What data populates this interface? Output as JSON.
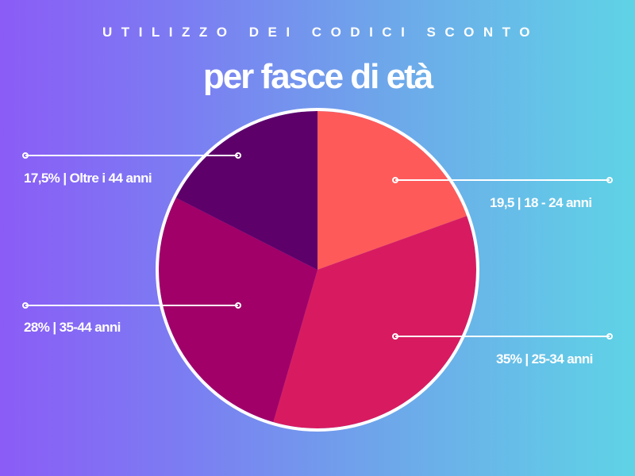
{
  "header": {
    "eyebrow": "UTILIZZO DEI CODICI SCONTO",
    "title": "per fasce di età"
  },
  "labels": {
    "top_left": "17,5% | Oltre i 44 anni",
    "top_right": "19,5  |  18 - 24 anni",
    "bottom_left": "28%  | 35-44 anni",
    "bottom_right": "35% | 25-34 anni"
  },
  "colors": {
    "background_start": "#8b5cf6",
    "background_end": "#5fd3e6",
    "slice_18_24": "#ff5a5a",
    "slice_25_34": "#d81b60",
    "slice_35_44": "#a10068",
    "slice_over_44": "#5e006a",
    "outline": "#ffffff"
  },
  "chart_data": {
    "type": "pie",
    "title": "UTILIZZO DEI CODICI SCONTO",
    "subtitle": "per fasce di età",
    "categories": [
      "18 - 24 anni",
      "25-34 anni",
      "35-44 anni",
      "Oltre i 44 anni"
    ],
    "values": [
      19.5,
      35,
      28,
      17.5
    ],
    "value_labels": [
      "19,5",
      "35%",
      "28%",
      "17,5%"
    ],
    "start_angle": "12 o'clock",
    "direction": "clockwise",
    "colors": [
      "#ff5a5a",
      "#d81b60",
      "#a10068",
      "#5e006a"
    ],
    "legend": "callout labels with leader lines"
  }
}
